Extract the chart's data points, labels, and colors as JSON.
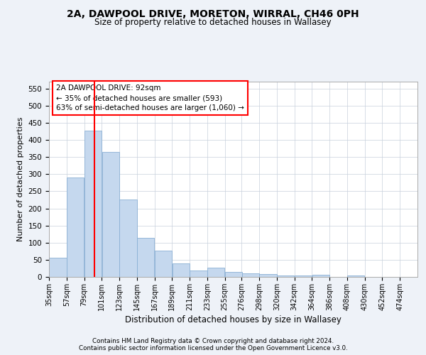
{
  "title1": "2A, DAWPOOL DRIVE, MORETON, WIRRAL, CH46 0PH",
  "title2": "Size of property relative to detached houses in Wallasey",
  "xlabel": "Distribution of detached houses by size in Wallasey",
  "ylabel": "Number of detached properties",
  "bins": [
    35,
    57,
    79,
    101,
    123,
    145,
    167,
    189,
    211,
    233,
    255,
    276,
    298,
    320,
    342,
    364,
    386,
    408,
    430,
    452,
    474
  ],
  "values": [
    55,
    290,
    428,
    365,
    225,
    113,
    77,
    40,
    18,
    27,
    15,
    10,
    9,
    5,
    4,
    6,
    0,
    4,
    0,
    0
  ],
  "bar_color": "#c5d8ee",
  "bar_edge_color": "#8ab0d4",
  "red_line_x": 92,
  "annotation_line1": "2A DAWPOOL DRIVE: 92sqm",
  "annotation_line2": "← 35% of detached houses are smaller (593)",
  "annotation_line3": "63% of semi-detached houses are larger (1,060) →",
  "annotation_box_color": "white",
  "annotation_box_edge": "red",
  "ylim": [
    0,
    570
  ],
  "yticks": [
    0,
    50,
    100,
    150,
    200,
    250,
    300,
    350,
    400,
    450,
    500,
    550
  ],
  "footer1": "Contains HM Land Registry data © Crown copyright and database right 2024.",
  "footer2": "Contains public sector information licensed under the Open Government Licence v3.0.",
  "background_color": "#eef2f8",
  "plot_background": "white",
  "grid_color": "#c8d0dc"
}
